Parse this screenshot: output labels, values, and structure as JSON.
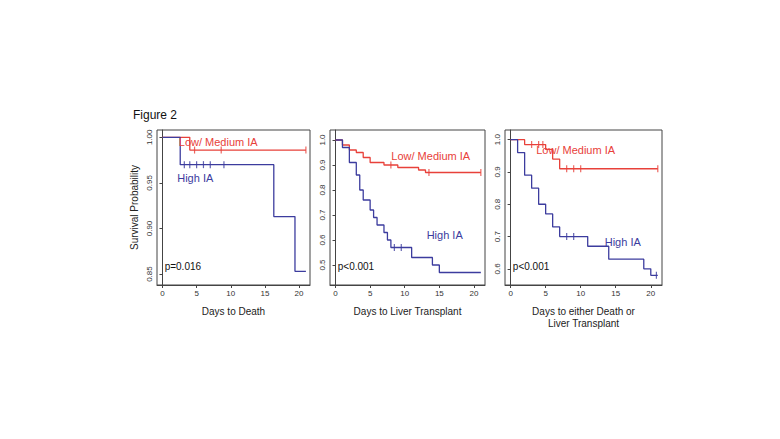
{
  "title": "Figure 2",
  "chart_data": [
    {
      "type": "line",
      "line_style": "step",
      "x_label": "Days to Death",
      "y_label": "Survival Probability",
      "annotation": "p=0.016",
      "xlim": [
        -0.8,
        21.6
      ],
      "xticks": [
        0,
        5,
        10,
        15,
        20
      ],
      "ylim": [
        0.838,
        1.008
      ],
      "yticks": [
        {
          "value": 0.85,
          "label": "0.85"
        },
        {
          "value": 0.9,
          "label": "0.90"
        },
        {
          "value": 0.95,
          "label": "0.95"
        },
        {
          "value": 1.0,
          "label": "1.00"
        }
      ],
      "series": [
        {
          "name": "Low/ Medium IA",
          "color": "#e8413a",
          "x": [
            0,
            4,
            21
          ],
          "values": [
            1.0,
            0.986,
            0.986
          ],
          "censored": [
            4.7,
            8.6,
            21
          ]
        },
        {
          "name": "High IA",
          "color": "#3c3c9e",
          "x": [
            0,
            2.6,
            16.3,
            19.4,
            21
          ],
          "values": [
            1.0,
            0.97,
            0.913,
            0.853,
            0.853
          ],
          "censored": [
            3.2,
            4,
            5,
            6,
            7,
            9
          ]
        }
      ]
    },
    {
      "type": "line",
      "line_style": "step",
      "x_label": "Days to Liver Transplant",
      "annotation": "p<0.001",
      "xlim": [
        -0.8,
        21.6
      ],
      "xticks": [
        0,
        5,
        10,
        15,
        20
      ],
      "ylim": [
        0.42,
        1.04
      ],
      "yticks": [
        0.5,
        0.6,
        0.7,
        0.8,
        0.9,
        {
          "value": 1.0,
          "label": "1.0"
        }
      ],
      "series": [
        {
          "name": "Low/ Medium IA",
          "color": "#e8413a",
          "x": [
            0,
            1,
            2,
            3,
            4,
            5,
            7,
            9,
            12,
            13,
            21
          ],
          "values": [
            1.0,
            0.98,
            0.96,
            0.95,
            0.93,
            0.91,
            0.9,
            0.89,
            0.88,
            0.87,
            0.87
          ],
          "censored": [
            8,
            13.5,
            21
          ]
        },
        {
          "name": "High IA",
          "color": "#3c3c9e",
          "x": [
            0,
            1,
            2,
            3,
            3.5,
            4,
            5,
            5.5,
            6,
            7,
            7.5,
            8,
            11,
            14,
            15,
            21
          ],
          "values": [
            1.0,
            0.97,
            0.91,
            0.86,
            0.8,
            0.76,
            0.72,
            0.69,
            0.66,
            0.63,
            0.6,
            0.57,
            0.53,
            0.5,
            0.47,
            0.47
          ],
          "censored": [
            8.5,
            9.5
          ]
        }
      ]
    },
    {
      "type": "line",
      "line_style": "step",
      "x_label": "Days to either Death or\nLiver Transplant",
      "annotation": "p<0.001",
      "xlim": [
        -0.8,
        21.6
      ],
      "xticks": [
        0,
        5,
        10,
        15,
        20
      ],
      "ylim": [
        0.55,
        1.03
      ],
      "yticks": [
        0.6,
        0.7,
        0.8,
        0.9,
        {
          "value": 1.0,
          "label": "1.0"
        }
      ],
      "series": [
        {
          "name": "Low/ Medium IA",
          "color": "#e8413a",
          "x": [
            0,
            2,
            5,
            6,
            7,
            21
          ],
          "values": [
            1.0,
            0.985,
            0.97,
            0.94,
            0.91,
            0.91
          ],
          "censored": [
            3,
            4,
            4.6,
            8,
            9,
            10,
            21
          ]
        },
        {
          "name": "High IA",
          "color": "#3c3c9e",
          "x": [
            0,
            1,
            2,
            3,
            4,
            5,
            6,
            7,
            11,
            14,
            19,
            20,
            21
          ],
          "values": [
            1.0,
            0.96,
            0.89,
            0.85,
            0.8,
            0.77,
            0.73,
            0.7,
            0.67,
            0.63,
            0.6,
            0.58,
            0.58
          ],
          "censored": [
            8,
            9,
            20.8
          ]
        }
      ]
    }
  ]
}
